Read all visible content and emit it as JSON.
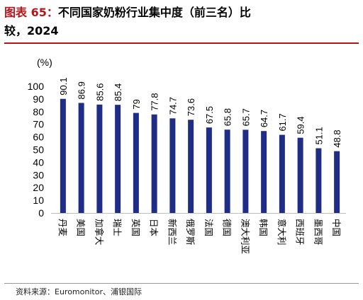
{
  "title": {
    "prefix": "图表 65：",
    "line1_rest": "不同国家奶粉行业集中度（前三名）比",
    "line2": "较，2024"
  },
  "source": "资料来源：Euromonitor、浦银国际",
  "chart_data": {
    "type": "bar",
    "ylabel": "(%)",
    "ylim": [
      0,
      100
    ],
    "yticks": [
      0,
      10,
      20,
      30,
      40,
      50,
      60,
      70,
      80,
      90,
      100
    ],
    "bar_color": "#1f2d86",
    "categories": [
      "丹麦",
      "美国",
      "加拿大",
      "瑞士",
      "英国",
      "日本",
      "新西兰",
      "俄罗斯",
      "法国",
      "德国",
      "澳大利亚",
      "韩国",
      "意大利",
      "西班牙",
      "墨西哥",
      "中国"
    ],
    "values": [
      90.1,
      86.9,
      85.6,
      85.4,
      79,
      77.8,
      74.7,
      73.6,
      67.5,
      65.8,
      65.7,
      64.7,
      61.7,
      59.4,
      51.1,
      48.8
    ],
    "labels": [
      "90.1",
      "86.9",
      "85.6",
      "85.4",
      "79",
      "77.8",
      "74.7",
      "73.6",
      "67.5",
      "65.8",
      "65.7",
      "64.7",
      "61.7",
      "59.4",
      "51.1",
      "48.8"
    ]
  }
}
